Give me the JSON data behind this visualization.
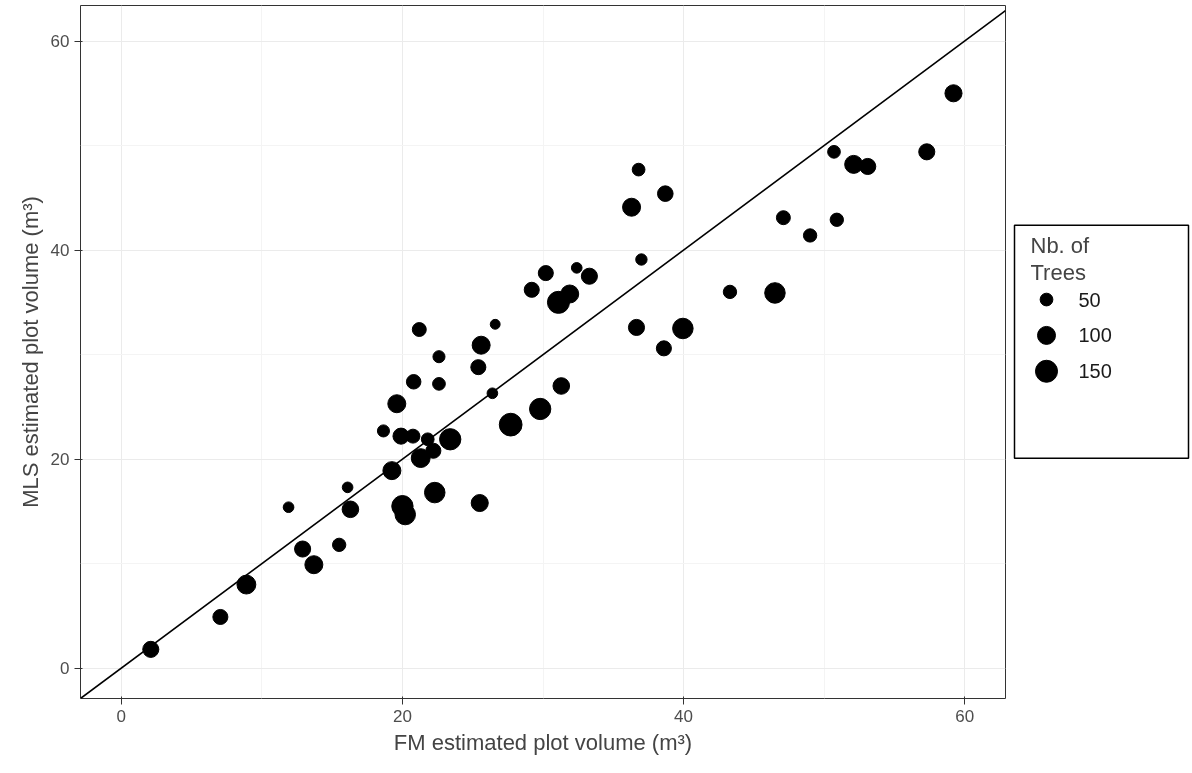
{
  "chart_data": {
    "type": "bubble",
    "xlabel": "FM estimated plot volume (m³)",
    "ylabel": "MLS estimated plot volume (m³)",
    "legend_title": "Nb. of\nTrees",
    "size_legend": [
      50,
      100,
      150
    ],
    "grid": true,
    "xlim": [
      -2.9,
      62.9
    ],
    "ylim": [
      -2.9,
      63.4
    ],
    "xticks": [
      0,
      20,
      40,
      60
    ],
    "yticks": [
      0,
      20,
      40,
      60
    ],
    "series": [
      {
        "color": "#000000",
        "x": [
          2.1,
          7.05,
          8.9,
          11.9,
          12.9,
          13.7,
          15.5,
          16.1,
          16.3,
          18.65,
          19.25,
          19.6,
          19.9,
          20.75,
          20.0,
          20.2,
          20.8,
          21.2,
          21.3,
          21.8,
          22.3,
          22.2,
          36.8,
          38.7,
          36.3,
          37.0,
          30.2,
          32.4,
          33.3,
          29.2,
          31.1,
          31.9,
          26.6,
          25.6,
          22.6,
          36.65,
          38.6,
          25.4,
          22.6,
          59.2,
          50.7,
          52.1,
          53.1,
          57.3,
          47.1,
          50.9,
          49.0,
          43.3,
          46.5,
          39.95,
          23.4,
          27.7,
          29.8,
          31.3,
          26.4,
          25.5
        ],
        "values": [
          1.8,
          4.9,
          8.0,
          15.4,
          11.4,
          9.9,
          11.8,
          17.3,
          15.2,
          22.7,
          18.9,
          25.3,
          22.2,
          22.2,
          15.5,
          14.7,
          27.4,
          32.4,
          20.1,
          21.9,
          16.8,
          20.8,
          47.7,
          45.4,
          44.1,
          39.1,
          37.8,
          38.3,
          37.5,
          36.2,
          35.0,
          35.8,
          32.9,
          30.9,
          29.8,
          32.6,
          30.6,
          28.8,
          27.2,
          55.0,
          49.4,
          48.2,
          48.0,
          49.4,
          43.1,
          42.9,
          41.4,
          36.0,
          35.9,
          32.5,
          21.9,
          23.3,
          24.8,
          27.0,
          26.3,
          15.8
        ],
        "sizes": [
          80,
          70,
          110,
          35,
          80,
          100,
          55,
          35,
          85,
          45,
          100,
          100,
          80,
          60,
          140,
          130,
          65,
          60,
          110,
          50,
          130,
          70,
          50,
          75,
          100,
          40,
          70,
          35,
          80,
          70,
          150,
          100,
          30,
          100,
          45,
          80,
          70,
          70,
          50,
          90,
          50,
          100,
          80,
          80,
          60,
          55,
          55,
          55,
          130,
          130,
          140,
          160,
          140,
          85,
          35,
          90
        ]
      },
      {
        "type": "line",
        "color": "#000000",
        "line_style": "solid",
        "x": [
          -2.9,
          62.9
        ],
        "values": [
          -2.9,
          62.9
        ]
      }
    ]
  }
}
